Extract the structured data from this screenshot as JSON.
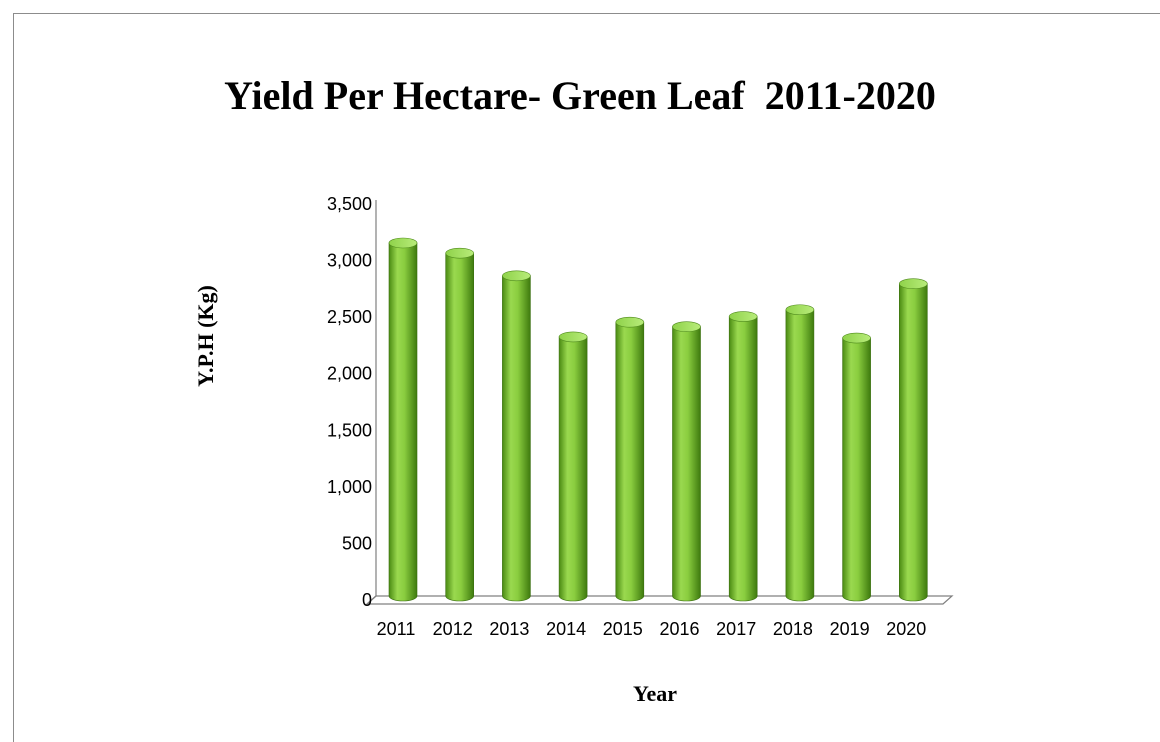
{
  "chart_data": {
    "type": "bar",
    "title": "Yield Per Hectare- Green Leaf  2011-2020",
    "xlabel": "Year",
    "ylabel": "Y.P.H (Kg)",
    "categories": [
      "2011",
      "2012",
      "2013",
      "2014",
      "2015",
      "2016",
      "2017",
      "2018",
      "2019",
      "2020"
    ],
    "values": [
      3120,
      3030,
      2830,
      2290,
      2420,
      2380,
      2470,
      2530,
      2280,
      2760
    ],
    "ylim": [
      0,
      3500
    ],
    "yticks": [
      0,
      500,
      1000,
      1500,
      2000,
      2500,
      3000,
      3500
    ],
    "ytick_labels": [
      "0",
      "500",
      "1,000",
      "1,500",
      "2,000",
      "2,500",
      "3,000",
      "3,500"
    ],
    "grid": false,
    "legend": "none",
    "bar_color": "#7ec13a"
  }
}
